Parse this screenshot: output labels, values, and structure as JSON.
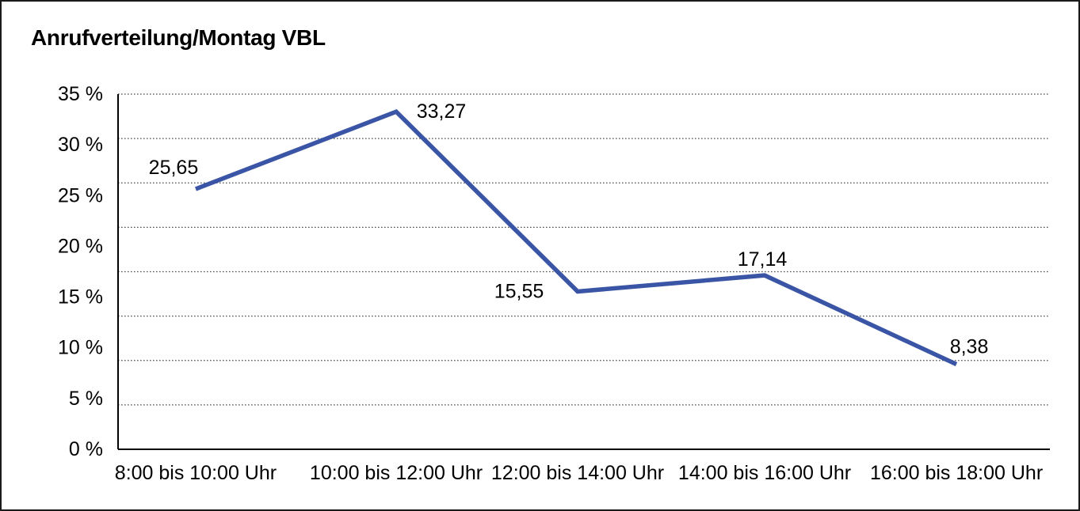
{
  "chart_data": {
    "type": "line",
    "title": "Anrufverteilung/Montag VBL",
    "categories": [
      "8:00 bis 10:00 Uhr",
      "10:00 bis 12:00 Uhr",
      "12:00 bis 14:00 Uhr",
      "14:00 bis 16:00 Uhr",
      "16:00 bis 18:00 Uhr"
    ],
    "values": [
      25.65,
      33.27,
      15.55,
      17.14,
      8.38
    ],
    "point_labels": [
      "25,65",
      "33,27",
      "15,55",
      "17,14",
      "8,38"
    ],
    "y_tick_labels": [
      "35 %",
      "30 %",
      "25 %",
      "20 %",
      "15 %",
      "10 %",
      "5 %",
      "0 %"
    ],
    "y_tick_values": [
      35,
      30,
      25,
      20,
      15,
      10,
      5,
      0
    ],
    "ylim": [
      0,
      35
    ],
    "grid": {
      "horizontal": true,
      "style": "dotted",
      "divisions": 8
    },
    "legend": "none",
    "colors": {
      "line": "#3A55A5",
      "text": "#000000",
      "axis": "#000000",
      "grid": "#4d4d4d",
      "background": "#ffffff",
      "frame_border": "#1a1a1a"
    }
  }
}
